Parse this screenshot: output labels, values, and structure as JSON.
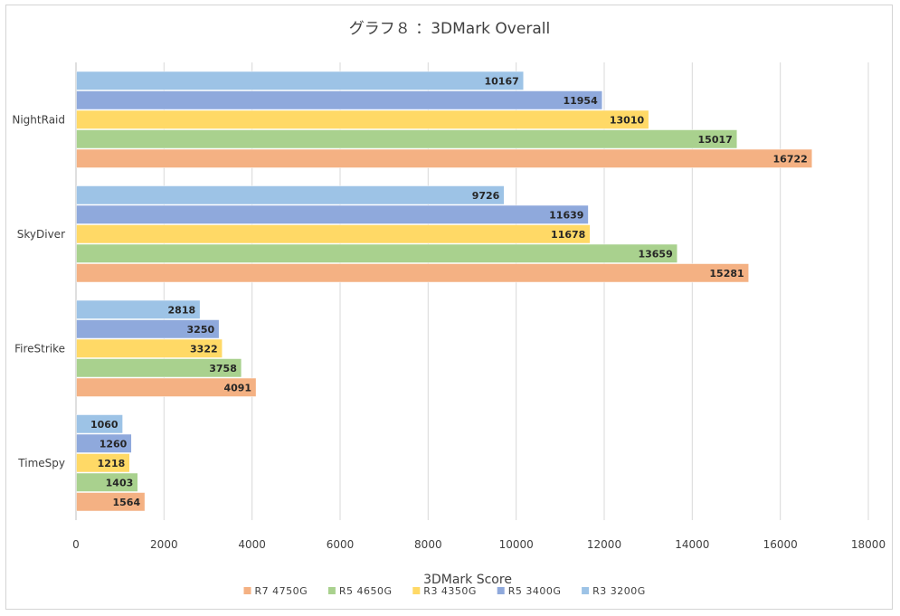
{
  "chart_data": {
    "type": "bar",
    "orientation": "horizontal",
    "title": "グラフ８ ：3DMark Overall",
    "xlabel": "3DMark Score",
    "ylabel": "",
    "xlim": [
      0,
      18000
    ],
    "x_ticks": [
      "0",
      "2000",
      "4000",
      "6000",
      "8000",
      "10000",
      "12000",
      "14000",
      "16000",
      "18000"
    ],
    "grid": "vertical",
    "legend_position": "bottom",
    "categories": [
      "NightRaid",
      "SkyDiver",
      "FireStrike",
      "TimeSpy"
    ],
    "series": [
      {
        "name": "R7  4750G",
        "color": "#f4b183",
        "values": [
          16722,
          15281,
          4091,
          1564
        ]
      },
      {
        "name": "R5  4650G",
        "color": "#a9d18e",
        "values": [
          15017,
          13659,
          3758,
          1403
        ]
      },
      {
        "name": "R3  4350G",
        "color": "#ffd966",
        "values": [
          13010,
          11678,
          3322,
          1218
        ]
      },
      {
        "name": "R5  3400G",
        "color": "#8fa9dc",
        "values": [
          11954,
          11639,
          3250,
          1260
        ]
      },
      {
        "name": "R3  3200G",
        "color": "#9dc3e6",
        "values": [
          10167,
          9726,
          2818,
          1060
        ]
      }
    ]
  }
}
